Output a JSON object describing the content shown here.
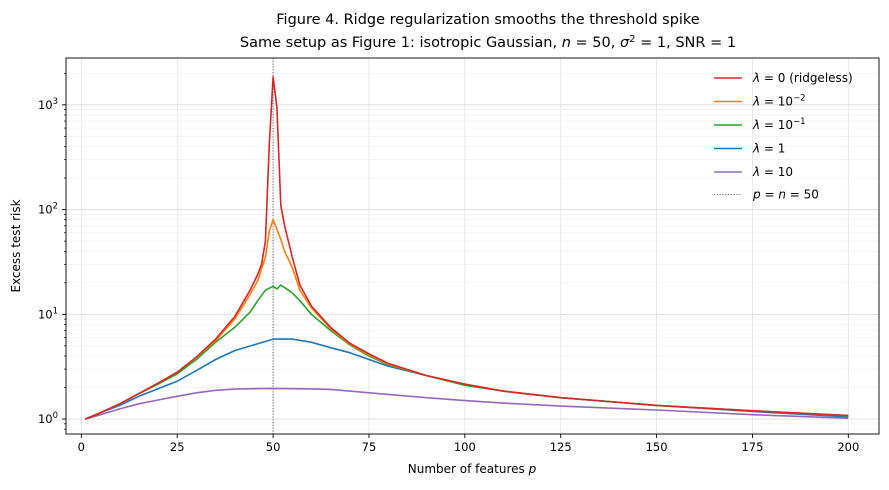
{
  "chart_data": {
    "type": "line",
    "title_line1": "Figure 4.  Ridge regularization smooths the threshold spike",
    "title_line2_prefix": "Same setup as Figure 1: isotropic Gaussian, ",
    "title_n": "n",
    "title_n_eq": " = 50, ",
    "title_sigma": "σ",
    "title_sigma_sup": "2",
    "title_sigma_eq": " = 1, SNR  = 1",
    "xlabel": "Number of features  ",
    "xlabel_var": "p",
    "ylabel": "Excess test risk",
    "xlim": [
      -4,
      208
    ],
    "ylim": [
      0.72,
      2800
    ],
    "yscale": "log",
    "grid": true,
    "legend_position": "top-right",
    "x_ticks": [
      "0",
      "25",
      "50",
      "75",
      "100",
      "125",
      "150",
      "175",
      "200"
    ],
    "y_ticks": [
      {
        "base": "10",
        "exp": "0",
        "value": 1
      },
      {
        "base": "10",
        "exp": "1",
        "value": 10
      },
      {
        "base": "10",
        "exp": "2",
        "value": 100
      },
      {
        "base": "10",
        "exp": "3",
        "value": 1000
      }
    ],
    "vline": {
      "x": 50,
      "color": "#444444",
      "label_math": "p = n = 50"
    },
    "series": [
      {
        "name": "λ = 0 (ridgeless)",
        "legend_main": "λ = 0",
        "legend_suffix": " (ridgeless)",
        "legend_sup": "",
        "color": "#d62728",
        "points": [
          [
            1,
            1.0
          ],
          [
            5,
            1.15
          ],
          [
            10,
            1.4
          ],
          [
            15,
            1.75
          ],
          [
            20,
            2.2
          ],
          [
            25,
            2.8
          ],
          [
            30,
            3.9
          ],
          [
            35,
            5.8
          ],
          [
            40,
            9.5
          ],
          [
            44,
            17
          ],
          [
            46,
            24
          ],
          [
            47,
            30
          ],
          [
            48,
            50
          ],
          [
            49,
            420
          ],
          [
            50,
            1850
          ],
          [
            51,
            950
          ],
          [
            52,
            110
          ],
          [
            53,
            70
          ],
          [
            55,
            35
          ],
          [
            57,
            19
          ],
          [
            60,
            12
          ],
          [
            65,
            7.5
          ],
          [
            70,
            5.3
          ],
          [
            75,
            4.2
          ],
          [
            80,
            3.4
          ],
          [
            90,
            2.6
          ],
          [
            100,
            2.15
          ],
          [
            110,
            1.85
          ],
          [
            125,
            1.6
          ],
          [
            150,
            1.35
          ],
          [
            175,
            1.2
          ],
          [
            200,
            1.08
          ]
        ]
      },
      {
        "name": "λ = 10^-2",
        "legend_main": "λ = 10",
        "legend_suffix": "",
        "legend_sup": "−2",
        "color": "#ff7f0e",
        "points": [
          [
            1,
            1.0
          ],
          [
            5,
            1.15
          ],
          [
            10,
            1.4
          ],
          [
            15,
            1.75
          ],
          [
            20,
            2.2
          ],
          [
            25,
            2.8
          ],
          [
            30,
            3.9
          ],
          [
            35,
            5.6
          ],
          [
            40,
            9
          ],
          [
            44,
            15.5
          ],
          [
            46,
            21
          ],
          [
            48,
            35
          ],
          [
            49,
            62
          ],
          [
            50,
            80
          ],
          [
            51,
            65
          ],
          [
            52,
            52
          ],
          [
            53,
            40
          ],
          [
            55,
            28
          ],
          [
            57,
            17
          ],
          [
            60,
            11.5
          ],
          [
            65,
            7.3
          ],
          [
            70,
            5.2
          ],
          [
            75,
            4.1
          ],
          [
            80,
            3.35
          ],
          [
            90,
            2.6
          ],
          [
            100,
            2.15
          ],
          [
            110,
            1.85
          ],
          [
            125,
            1.6
          ],
          [
            150,
            1.35
          ],
          [
            175,
            1.2
          ],
          [
            200,
            1.08
          ]
        ]
      },
      {
        "name": "λ = 10^-1",
        "legend_main": "λ = 10",
        "legend_suffix": "",
        "legend_sup": "−1",
        "color": "#2ca02c",
        "points": [
          [
            1,
            1.0
          ],
          [
            5,
            1.15
          ],
          [
            10,
            1.4
          ],
          [
            15,
            1.75
          ],
          [
            20,
            2.15
          ],
          [
            25,
            2.7
          ],
          [
            30,
            3.7
          ],
          [
            35,
            5.4
          ],
          [
            40,
            7.5
          ],
          [
            44,
            10.5
          ],
          [
            46,
            13.5
          ],
          [
            48,
            17
          ],
          [
            50,
            18.5
          ],
          [
            51,
            17.5
          ],
          [
            52,
            19
          ],
          [
            53,
            18
          ],
          [
            55,
            16
          ],
          [
            57,
            13.5
          ],
          [
            60,
            10
          ],
          [
            65,
            7
          ],
          [
            70,
            5.1
          ],
          [
            75,
            4.0
          ],
          [
            80,
            3.3
          ],
          [
            90,
            2.6
          ],
          [
            100,
            2.1
          ],
          [
            110,
            1.85
          ],
          [
            125,
            1.6
          ],
          [
            150,
            1.35
          ],
          [
            175,
            1.2
          ],
          [
            200,
            1.08
          ]
        ]
      },
      {
        "name": "λ = 1",
        "legend_main": "λ = 1",
        "legend_suffix": "",
        "legend_sup": "",
        "color": "#1f77b4",
        "points": [
          [
            1,
            1.0
          ],
          [
            5,
            1.15
          ],
          [
            10,
            1.35
          ],
          [
            15,
            1.65
          ],
          [
            20,
            1.95
          ],
          [
            25,
            2.3
          ],
          [
            30,
            2.9
          ],
          [
            35,
            3.7
          ],
          [
            40,
            4.5
          ],
          [
            45,
            5.1
          ],
          [
            50,
            5.8
          ],
          [
            55,
            5.8
          ],
          [
            60,
            5.4
          ],
          [
            65,
            4.8
          ],
          [
            70,
            4.3
          ],
          [
            75,
            3.7
          ],
          [
            80,
            3.2
          ],
          [
            90,
            2.6
          ],
          [
            100,
            2.15
          ],
          [
            110,
            1.85
          ],
          [
            125,
            1.6
          ],
          [
            150,
            1.35
          ],
          [
            175,
            1.18
          ],
          [
            200,
            1.05
          ]
        ]
      },
      {
        "name": "λ = 10",
        "legend_main": "λ = 10",
        "legend_suffix": "",
        "legend_sup": "",
        "color": "#9467bd",
        "points": [
          [
            1,
            1.0
          ],
          [
            5,
            1.1
          ],
          [
            10,
            1.25
          ],
          [
            15,
            1.4
          ],
          [
            20,
            1.52
          ],
          [
            25,
            1.65
          ],
          [
            30,
            1.78
          ],
          [
            35,
            1.88
          ],
          [
            40,
            1.93
          ],
          [
            45,
            1.95
          ],
          [
            50,
            1.96
          ],
          [
            55,
            1.95
          ],
          [
            60,
            1.94
          ],
          [
            65,
            1.92
          ],
          [
            70,
            1.85
          ],
          [
            75,
            1.78
          ],
          [
            80,
            1.72
          ],
          [
            90,
            1.6
          ],
          [
            100,
            1.5
          ],
          [
            110,
            1.42
          ],
          [
            125,
            1.33
          ],
          [
            150,
            1.22
          ],
          [
            175,
            1.1
          ],
          [
            200,
            1.02
          ]
        ]
      }
    ]
  }
}
